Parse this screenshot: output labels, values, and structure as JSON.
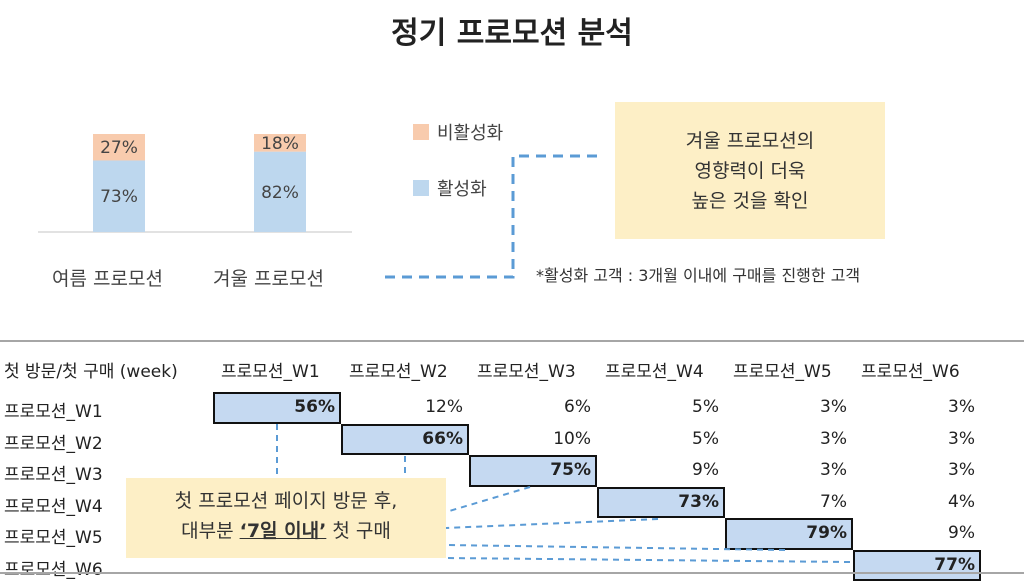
{
  "title": "정기 프로모션 분석",
  "chart_data": [
    {
      "type": "bar",
      "stacked": true,
      "categories": [
        "여름 프로모션",
        "겨울 프로모션"
      ],
      "series": [
        {
          "name": "활성화",
          "values": [
            73,
            82
          ],
          "labels": [
            "73%",
            "82%"
          ],
          "color": "#bdd7ee"
        },
        {
          "name": "비활성화",
          "values": [
            27,
            18
          ],
          "labels": [
            "27%",
            "18%"
          ],
          "color": "#f8cbad"
        }
      ],
      "ylim": [
        0,
        100
      ],
      "legend": "right"
    },
    {
      "type": "table",
      "corner_header": "첫 방문/첫 구매 (week)",
      "columns": [
        "프로모션_W1",
        "프로모션_W2",
        "프로모션_W3",
        "프로모션_W4",
        "프로모션_W5",
        "프로모션_W6"
      ],
      "rows": [
        {
          "label": "프로모션_W1",
          "cells": [
            "56%",
            "12%",
            "6%",
            "5%",
            "3%",
            "3%"
          ]
        },
        {
          "label": "프로모션_W2",
          "cells": [
            "66%",
            "10%",
            "5%",
            "3%",
            "3%"
          ]
        },
        {
          "label": "프로모션_W3",
          "cells": [
            "75%",
            "9%",
            "3%",
            "3%"
          ]
        },
        {
          "label": "프로모션_W4",
          "cells": [
            "73%",
            "7%",
            "4%"
          ]
        },
        {
          "label": "프로모션_W5",
          "cells": [
            "79%",
            "9%"
          ]
        },
        {
          "label": "프로모션_W6",
          "cells": [
            "77%"
          ]
        }
      ],
      "highlight": "diagonal",
      "highlight_color": "#c5d9f1"
    }
  ],
  "insight": {
    "lines": [
      "겨울 프로모션의",
      "영향력이 더욱",
      "높은 것을 확인"
    ]
  },
  "footnote": "*활성화 고객 : 3개월 이내에 구매를 진행한 고객",
  "callout": {
    "line1": "첫 프로모션 페이지 방문 후,",
    "line2_pre": "대부분 ",
    "line2_emph": "‘7일 이내’",
    "line2_post": " 첫 구매"
  }
}
